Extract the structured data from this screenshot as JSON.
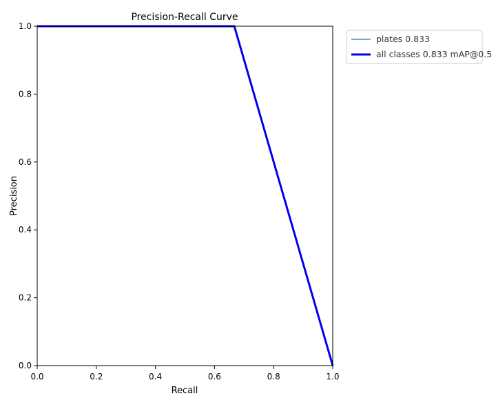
{
  "chart_data": {
    "type": "line",
    "title": "Precision-Recall Curve",
    "xlabel": "Recall",
    "ylabel": "Precision",
    "xlim": [
      0.0,
      1.0
    ],
    "ylim": [
      0.0,
      1.0
    ],
    "xticks": [
      "0.0",
      "0.2",
      "0.4",
      "0.6",
      "0.8",
      "1.0"
    ],
    "yticks": [
      "0.0",
      "0.2",
      "0.4",
      "0.6",
      "0.8",
      "1.0"
    ],
    "grid": false,
    "legend_position": "outside-upper-right",
    "series": [
      {
        "name": "plates 0.833",
        "color": "#1f77b4",
        "line_weight": "thin",
        "x": [
          0.0,
          0.667,
          1.0
        ],
        "y": [
          1.0,
          1.0,
          0.0
        ]
      },
      {
        "name": "all classes 0.833 mAP@0.5",
        "color": "#0000ee",
        "line_weight": "thick",
        "x": [
          0.0,
          0.667,
          1.0
        ],
        "y": [
          1.0,
          1.0,
          0.0
        ]
      }
    ]
  }
}
